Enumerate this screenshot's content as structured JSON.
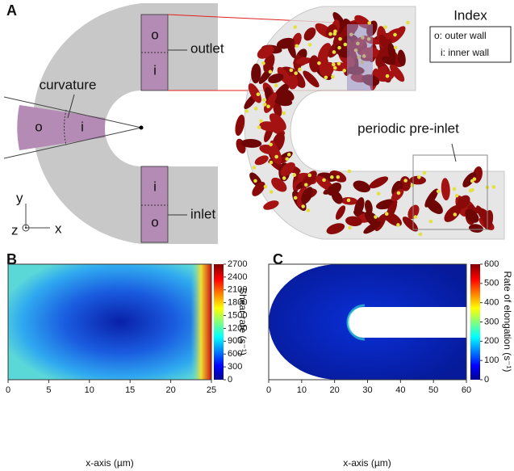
{
  "panel_a": {
    "label": "A",
    "outer_mark": "o",
    "inner_mark": "i",
    "outlet_label": "outlet",
    "inlet_label": "inlet",
    "curvature_label": "curvature",
    "pre_inlet_label": "periodic pre-inlet",
    "axes": {
      "y": "y",
      "z": "z",
      "x": "x"
    },
    "index": {
      "title": "Index",
      "entries": [
        "o: outer wall",
        "i: inner wall"
      ]
    }
  },
  "panel_b": {
    "label": "B",
    "x_axis_label": "x-axis (µm)",
    "x_ticks": [
      0,
      5,
      10,
      15,
      20,
      25
    ],
    "colorbar_label": "Shear rate (s⁻¹)",
    "colorbar_ticks": [
      2700,
      2400,
      2100,
      1800,
      1500,
      1200,
      900,
      600,
      300,
      0
    ]
  },
  "panel_c": {
    "label": "C",
    "x_axis_label": "x-axis (µm)",
    "x_ticks": [
      0,
      10,
      20,
      30,
      40,
      50,
      60
    ],
    "colorbar_label": "Rate of elongation (s⁻¹)",
    "colorbar_ticks": [
      600,
      500,
      400,
      300,
      200,
      100,
      0
    ]
  }
}
